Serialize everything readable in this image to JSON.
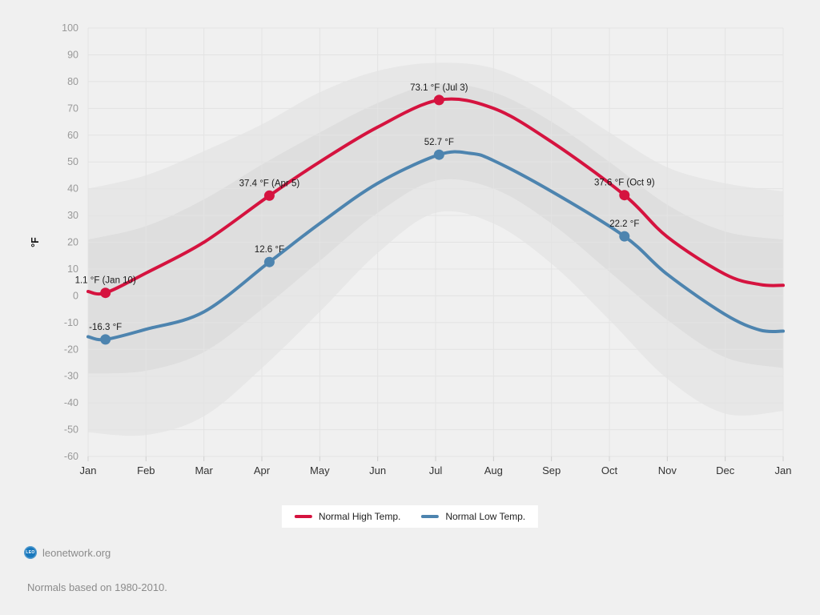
{
  "page": {
    "background": "#f0f0f0"
  },
  "chart_data": {
    "type": "line",
    "title": "",
    "ylabel": "°F",
    "ylim": [
      -60,
      100
    ],
    "y_tick_step": 10,
    "grid": true,
    "legend_position": "bottom",
    "x_categories": [
      "Jan",
      "Feb",
      "Mar",
      "Apr",
      "May",
      "Jun",
      "Jul",
      "Aug",
      "Sep",
      "Oct",
      "Nov",
      "Dec",
      "Jan"
    ],
    "series": [
      {
        "name": "Normal High Temp.",
        "color": "#d5133f",
        "points": [
          [
            0,
            1.6
          ],
          [
            0.3,
            1.1
          ],
          [
            1,
            8.5
          ],
          [
            2,
            20
          ],
          [
            3.13,
            37.4
          ],
          [
            4,
            50
          ],
          [
            5,
            63
          ],
          [
            6.06,
            73.1
          ],
          [
            7,
            70
          ],
          [
            8,
            57.5
          ],
          [
            9.26,
            37.6
          ],
          [
            10,
            22
          ],
          [
            11,
            8
          ],
          [
            11.6,
            4.2
          ],
          [
            12,
            3.9
          ]
        ],
        "markers": [
          {
            "m": 0.3,
            "v": 1.1,
            "label": "1.1 °F (Jan 10)"
          },
          {
            "m": 3.13,
            "v": 37.4,
            "label": "37.4 °F (Apr 5)"
          },
          {
            "m": 6.06,
            "v": 73.1,
            "label": "73.1 °F (Jul 3)"
          },
          {
            "m": 9.26,
            "v": 37.6,
            "label": "37.6 °F (Oct 9)"
          }
        ]
      },
      {
        "name": "Normal Low Temp.",
        "color": "#4d84af",
        "points": [
          [
            0,
            -15.3
          ],
          [
            0.3,
            -16.3
          ],
          [
            1,
            -12.5
          ],
          [
            2,
            -6
          ],
          [
            3.13,
            12.6
          ],
          [
            4,
            27
          ],
          [
            5,
            42
          ],
          [
            6.06,
            52.7
          ],
          [
            6.6,
            53.2
          ],
          [
            7,
            50.5
          ],
          [
            8,
            39
          ],
          [
            9.26,
            22.2
          ],
          [
            10,
            8
          ],
          [
            11,
            -7
          ],
          [
            11.6,
            -12.8
          ],
          [
            12,
            -13.2
          ]
        ],
        "markers": [
          {
            "m": 0.3,
            "v": -16.3,
            "label": "-16.3 °F"
          },
          {
            "m": 3.13,
            "v": 12.6,
            "label": "12.6 °F"
          },
          {
            "m": 6.06,
            "v": 52.7,
            "label": "52.7 °F"
          },
          {
            "m": 9.26,
            "v": 22.2,
            "label": "22.2 °F"
          }
        ]
      }
    ],
    "bands": [
      {
        "name": "record-range (estimated)",
        "color": "#e7e7e7",
        "top": [
          40,
          45,
          54,
          64,
          76,
          84,
          87,
          85,
          75,
          61,
          48,
          42,
          39
        ],
        "bottom": [
          -51,
          -52,
          -45,
          -27,
          -6,
          16,
          31,
          27,
          12,
          -9,
          -31,
          -44,
          -43
        ]
      },
      {
        "name": "typical-range (estimated)",
        "color": "#dedede",
        "top": [
          21,
          26,
          36,
          49,
          61,
          72,
          79,
          76,
          65,
          50,
          34,
          24,
          21
        ],
        "bottom": [
          -29,
          -28,
          -21,
          -5,
          13,
          31,
          43,
          40,
          27,
          9,
          -9,
          -23,
          -27
        ]
      }
    ],
    "colors": {
      "grid_line": "#e3e3e3",
      "y_tick_label": "#999999",
      "x_tick_label": "#333333",
      "data_label": "#1a1a1a",
      "axis_title": "#111111"
    }
  },
  "legend": {
    "items": [
      {
        "label": "Normal High Temp.",
        "color": "#d5133f"
      },
      {
        "label": "Normal Low Temp.",
        "color": "#4d84af"
      }
    ]
  },
  "footer": {
    "logo_text": "LEO",
    "site": "leonetwork.org",
    "note": "Normals based on 1980-2010."
  }
}
